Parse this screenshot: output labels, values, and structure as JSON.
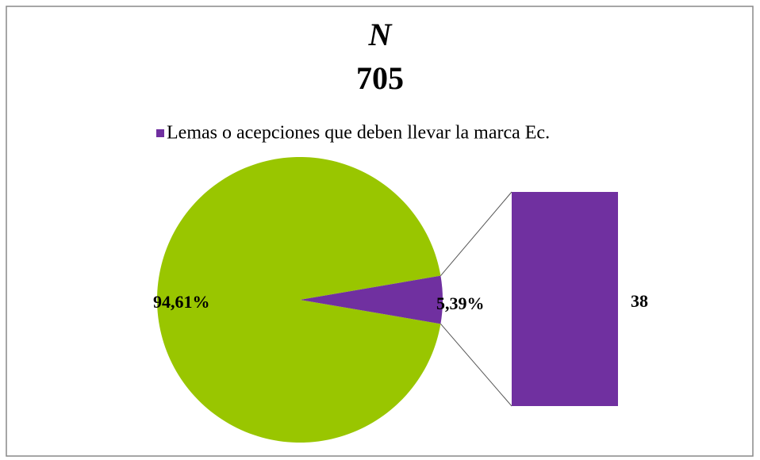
{
  "chart_data": {
    "type": "pie-of-bar",
    "title": "N",
    "subtitle": "705",
    "categories": [
      null,
      "Lemas o acepciones que deben llevar la marca Ec."
    ],
    "values": [
      94.61,
      5.39
    ],
    "value_labels": [
      "94,61%",
      "5,39%"
    ],
    "colors": [
      "#99c600",
      "#7030a0"
    ],
    "bar": {
      "values": [
        38
      ],
      "colors": [
        "#7030a0"
      ]
    },
    "legend": "top"
  }
}
